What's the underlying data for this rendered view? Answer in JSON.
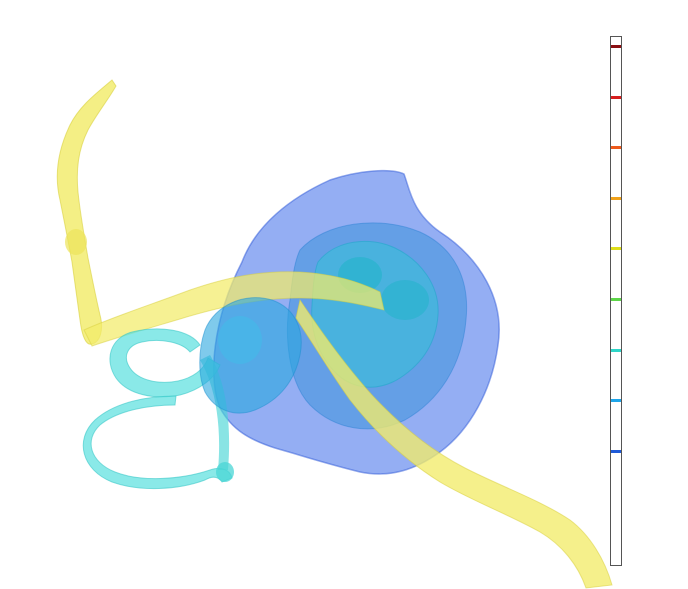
{
  "viewer": {
    "background": "#ffffff"
  },
  "structures": [
    {
      "name": "nerve-canal",
      "color": "#f2ec6a"
    },
    {
      "name": "vestibule-outer-shell",
      "color": "#3d6bea"
    },
    {
      "name": "vestibule-inner-shell",
      "color": "#2b8fd8"
    },
    {
      "name": "cochlea-core",
      "color": "#2ec6d6"
    },
    {
      "name": "semicircular-canals",
      "color": "#59e0de"
    }
  ],
  "colorbar": {
    "ticks": [
      {
        "name": "tick-dark-red",
        "color": "#8a0f12"
      },
      {
        "name": "tick-red",
        "color": "#d61e1e"
      },
      {
        "name": "tick-red-orange",
        "color": "#ee5a1c"
      },
      {
        "name": "tick-orange",
        "color": "#f0a21a"
      },
      {
        "name": "tick-yellow",
        "color": "#dede1a"
      },
      {
        "name": "tick-green",
        "color": "#5ed64a"
      },
      {
        "name": "tick-cyan",
        "color": "#2ed6c8"
      },
      {
        "name": "tick-sky-blue",
        "color": "#1ea6ea"
      },
      {
        "name": "tick-blue",
        "color": "#1e5ad8"
      }
    ]
  }
}
